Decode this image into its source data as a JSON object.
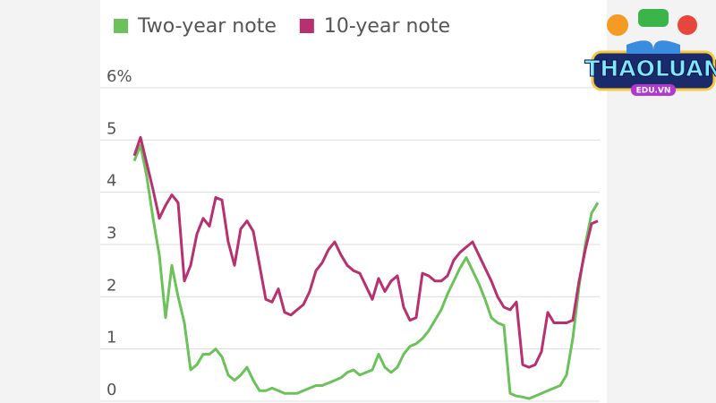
{
  "chart_data": {
    "type": "line",
    "categories": [
      null,
      null,
      null,
      null,
      null,
      null,
      null,
      null,
      null,
      null,
      null,
      null,
      null,
      null,
      null,
      null,
      null,
      null,
      null,
      null,
      null,
      null,
      null,
      null,
      null,
      null,
      null,
      null,
      null,
      null,
      null,
      null,
      null,
      null,
      null,
      null,
      null,
      null,
      null,
      null,
      null,
      null,
      null,
      null,
      null,
      null,
      null,
      null,
      null,
      null,
      null,
      null,
      null,
      null,
      null,
      null,
      null,
      null,
      null,
      null,
      null,
      null,
      null,
      null,
      null,
      null,
      null,
      null,
      null,
      null,
      null,
      null,
      null,
      null,
      null
    ],
    "series": [
      {
        "name": "Two-year note",
        "color": "#6cc25a",
        "values": [
          4.6,
          4.9,
          4.3,
          3.5,
          2.8,
          1.6,
          2.6,
          2.0,
          1.5,
          0.6,
          0.7,
          0.9,
          0.9,
          1.0,
          0.85,
          0.5,
          0.4,
          0.5,
          0.65,
          0.4,
          0.2,
          0.2,
          0.25,
          0.2,
          0.15,
          0.15,
          0.15,
          0.2,
          0.25,
          0.3,
          0.3,
          0.35,
          0.4,
          0.45,
          0.55,
          0.6,
          0.5,
          0.55,
          0.6,
          0.9,
          0.65,
          0.55,
          0.65,
          0.9,
          1.05,
          1.1,
          1.2,
          1.35,
          1.55,
          1.75,
          2.05,
          2.3,
          2.55,
          2.75,
          2.5,
          2.25,
          1.95,
          1.6,
          1.5,
          1.45,
          0.15,
          0.1,
          0.08,
          0.05,
          0.1,
          0.15,
          0.2,
          0.25,
          0.3,
          0.5,
          1.2,
          2.2,
          3.0,
          3.6,
          3.8
        ]
      },
      {
        "name": "10-year note",
        "color": "#b8306f",
        "values": [
          4.7,
          5.05,
          4.55,
          4.05,
          3.5,
          3.75,
          3.95,
          3.8,
          2.3,
          2.6,
          3.2,
          3.5,
          3.35,
          3.9,
          3.85,
          3.05,
          2.6,
          3.3,
          3.45,
          3.25,
          2.6,
          1.95,
          1.9,
          2.15,
          1.7,
          1.65,
          1.75,
          1.85,
          2.1,
          2.5,
          2.65,
          2.9,
          3.05,
          2.8,
          2.6,
          2.5,
          2.45,
          2.2,
          1.95,
          2.35,
          2.1,
          2.3,
          2.4,
          1.8,
          1.55,
          1.6,
          2.45,
          2.4,
          2.3,
          2.3,
          2.4,
          2.7,
          2.85,
          2.95,
          3.05,
          2.8,
          2.55,
          2.3,
          2.0,
          1.8,
          1.75,
          1.9,
          0.7,
          0.65,
          0.7,
          0.95,
          1.7,
          1.5,
          1.5,
          1.5,
          1.55,
          2.3,
          2.9,
          3.4,
          3.45
        ]
      }
    ],
    "ylim": [
      0,
      6
    ],
    "yticks": [
      0,
      1,
      2,
      3,
      4,
      5,
      {
        "value": 6,
        "label": "6%"
      }
    ],
    "grid": true
  },
  "watermark": {
    "title": "THAOLUAN",
    "subtitle": "EDU.VN"
  }
}
